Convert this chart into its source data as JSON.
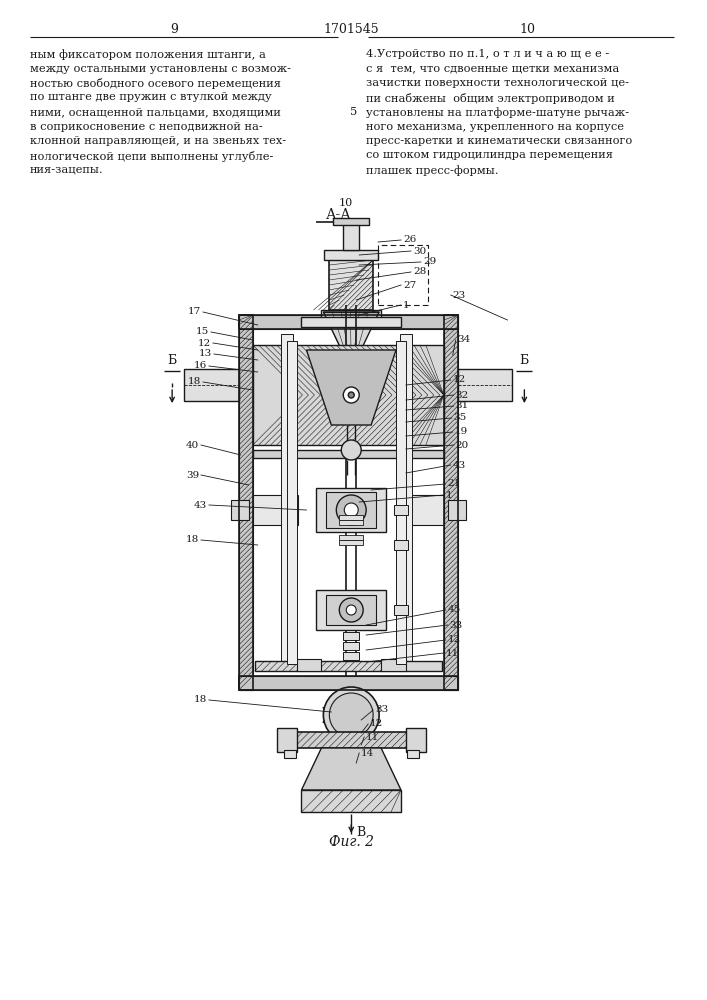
{
  "page_left": "9",
  "page_right": "10",
  "patent_number": "1701545",
  "text_left": "ным фиксатором положения штанги, а\nмежду остальными установлены с возмож-\nностью свободного осевого перемещения\nпо штанге две пружин с втулкой между\nними, оснащенной пальцами, входящими\nв соприкосновение с неподвижной на-\nклонной направляющей, и на звеньях тех-\nнологической цепи выполнены углубле-\nния-зацепы.",
  "text_right": "4.Устройство по п.1, о т л и ч а ю щ е е -\nс я  тем, что сдвоенные щетки механизма\nзачистки поверхности технологической це-\nпи снабжены  общим электроприводом и\nустановлены на платформе-шатуне рычаж-\nного механизма, укрепленного на корпусе\nпресс-каретки и кинематически связанного\nсо штоком гидроцилиндра перемещения\nплашек пресс-формы.",
  "line_number": "5",
  "section_label": "А-А",
  "section_number": "10",
  "fig_label": "Фиг. 2",
  "bg_color": "#ffffff",
  "text_color": "#1a1a1a",
  "drawing_color": "#1a1a1a"
}
